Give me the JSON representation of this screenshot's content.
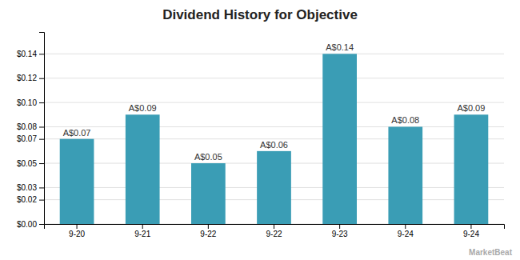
{
  "chart_data": {
    "type": "bar",
    "title": "Dividend History for Objective",
    "categories": [
      "9-20",
      "9-21",
      "9-22",
      "9-22",
      "9-23",
      "9-24",
      "9-24"
    ],
    "values": [
      0.07,
      0.09,
      0.05,
      0.06,
      0.14,
      0.08,
      0.09
    ],
    "value_labels": [
      "A$0.07",
      "A$0.09",
      "A$0.05",
      "A$0.06",
      "A$0.14",
      "A$0.08",
      "A$0.09"
    ],
    "data_labels": true,
    "color": "#3a9db5",
    "ylim": [
      0,
      0.158
    ],
    "yticks": [
      {
        "value": 0.0,
        "label": "$0.00"
      },
      {
        "value": 0.02,
        "label": "$0.02"
      },
      {
        "value": 0.03,
        "label": "$0.03"
      },
      {
        "value": 0.05,
        "label": "$0.05"
      },
      {
        "value": 0.07,
        "label": "$0.07"
      },
      {
        "value": 0.08,
        "label": "$0.08"
      },
      {
        "value": 0.1,
        "label": "$0.10"
      },
      {
        "value": 0.12,
        "label": "$0.12"
      },
      {
        "value": 0.14,
        "label": "$0.14"
      }
    ],
    "grid": true,
    "annotations": [
      {
        "text": "MarketBeat"
      }
    ]
  }
}
